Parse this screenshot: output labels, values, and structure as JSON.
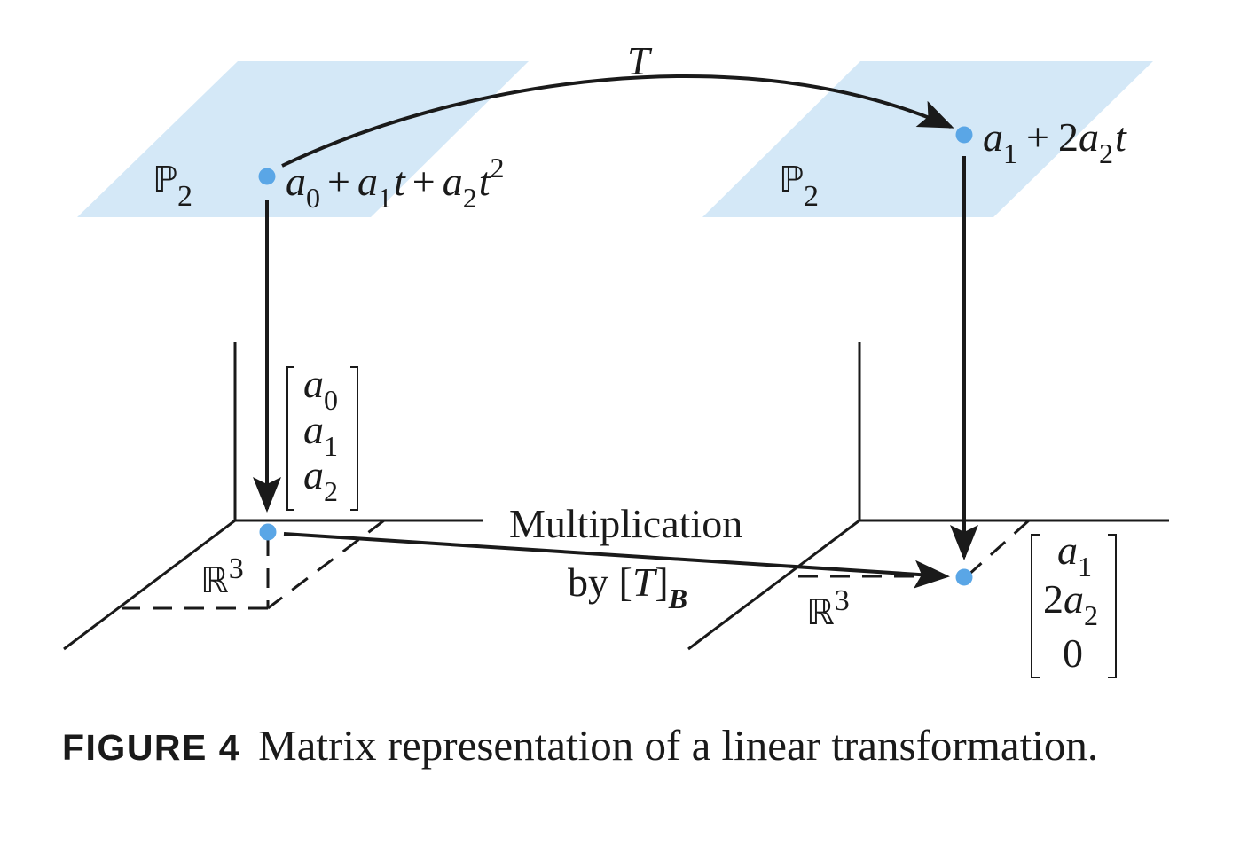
{
  "diagram": {
    "top_left_space": {
      "letter": "ℙ",
      "subscript": "2"
    },
    "top_right_space": {
      "letter": "ℙ",
      "subscript": "2"
    },
    "bottom_left_space": {
      "letter": "ℝ",
      "superscript": "3"
    },
    "bottom_right_space": {
      "letter": "ℝ",
      "superscript": "3"
    },
    "map_label": "T",
    "input_polynomial": {
      "a0": "a",
      "a0_sub": "0",
      "plus1": "+",
      "a1": "a",
      "a1_sub": "1",
      "t1": "t",
      "plus2": "+",
      "a2": "a",
      "a2_sub": "2",
      "t2": "t",
      "t2_sup": "2"
    },
    "output_polynomial": {
      "a1": "a",
      "a1_sub": "1",
      "plus": "+",
      "coef": "2",
      "a2": "a",
      "a2_sub": "2",
      "t": "t"
    },
    "input_vector": [
      {
        "var": "a",
        "sub": "0"
      },
      {
        "var": "a",
        "sub": "1"
      },
      {
        "var": "a",
        "sub": "2"
      }
    ],
    "output_vector": [
      {
        "var": "a",
        "sub": "1",
        "coef": ""
      },
      {
        "var": "a",
        "sub": "2",
        "coef": "2"
      },
      {
        "var": "",
        "sub": "",
        "coef": "0"
      }
    ],
    "matrix_map_label": {
      "line1": "Multiplication",
      "line2_prefix": "by [",
      "line2_T": "T",
      "line2_suffix": "]",
      "line2_sub": "B"
    },
    "colors": {
      "plane_fill": "#d4e8f7",
      "point": "#5aa6e6",
      "ink": "#1a1a1a"
    }
  },
  "caption": {
    "label": "FIGURE 4",
    "text": "Matrix representation of a linear transformation."
  }
}
